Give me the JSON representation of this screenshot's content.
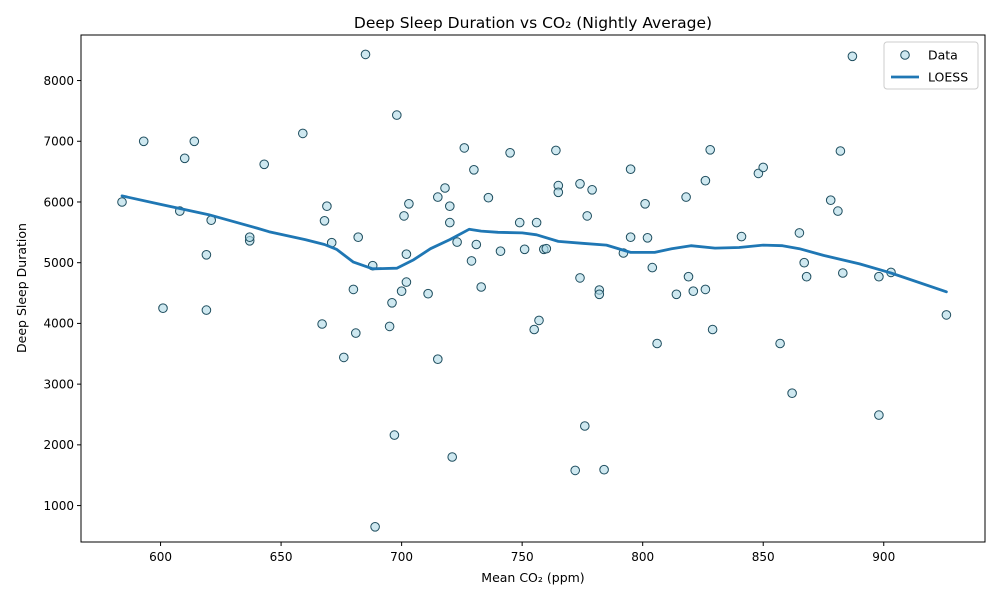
{
  "chart_data": {
    "type": "scatter",
    "title": "Deep Sleep Duration vs CO₂ (Nightly Average)",
    "xlabel": "Mean CO₂ (ppm)",
    "ylabel": "Deep Sleep Duration",
    "xlim": [
      567,
      942
    ],
    "ylim": [
      400,
      8750
    ],
    "xticks": [
      600,
      650,
      700,
      750,
      800,
      850,
      900
    ],
    "yticks": [
      1000,
      2000,
      3000,
      4000,
      5000,
      6000,
      7000,
      8000
    ],
    "grid": false,
    "legend_position": "top-right",
    "legend": [
      {
        "label": "Data",
        "marker": "circle"
      },
      {
        "label": "LOESS",
        "marker": "line"
      }
    ],
    "colors": {
      "point_fill": "#add8e6",
      "point_edge": "#1f4e5f",
      "loess": "#1f77b4"
    },
    "series": [
      {
        "name": "Data",
        "kind": "scatter",
        "points": [
          [
            584,
            6000
          ],
          [
            593,
            7000
          ],
          [
            601,
            4250
          ],
          [
            608,
            5850
          ],
          [
            610,
            6720
          ],
          [
            614,
            7000
          ],
          [
            619,
            5130
          ],
          [
            619,
            4220
          ],
          [
            621,
            5700
          ],
          [
            637,
            5360
          ],
          [
            637,
            5420
          ],
          [
            643,
            6620
          ],
          [
            659,
            7130
          ],
          [
            667,
            3990
          ],
          [
            668,
            5690
          ],
          [
            669,
            5930
          ],
          [
            671,
            5330
          ],
          [
            676,
            3440
          ],
          [
            680,
            4560
          ],
          [
            681,
            3840
          ],
          [
            682,
            5420
          ],
          [
            685,
            8430
          ],
          [
            688,
            4950
          ],
          [
            689,
            650
          ],
          [
            695,
            3950
          ],
          [
            696,
            4340
          ],
          [
            697,
            2160
          ],
          [
            698,
            7430
          ],
          [
            700,
            4530
          ],
          [
            701,
            5770
          ],
          [
            702,
            5140
          ],
          [
            702,
            4680
          ],
          [
            703,
            5970
          ],
          [
            711,
            4490
          ],
          [
            715,
            3410
          ],
          [
            715,
            6080
          ],
          [
            718,
            6230
          ],
          [
            720,
            5660
          ],
          [
            720,
            5930
          ],
          [
            721,
            1800
          ],
          [
            723,
            5340
          ],
          [
            726,
            6890
          ],
          [
            729,
            5030
          ],
          [
            730,
            6530
          ],
          [
            731,
            5300
          ],
          [
            733,
            4600
          ],
          [
            736,
            6070
          ],
          [
            741,
            5190
          ],
          [
            745,
            6810
          ],
          [
            749,
            5660
          ],
          [
            751,
            5220
          ],
          [
            755,
            3900
          ],
          [
            756,
            5660
          ],
          [
            757,
            4050
          ],
          [
            759,
            5220
          ],
          [
            760,
            5230
          ],
          [
            764,
            6850
          ],
          [
            765,
            6270
          ],
          [
            765,
            6160
          ],
          [
            772,
            1580
          ],
          [
            774,
            6300
          ],
          [
            774,
            4750
          ],
          [
            776,
            2310
          ],
          [
            777,
            5770
          ],
          [
            779,
            6200
          ],
          [
            782,
            4550
          ],
          [
            782,
            4480
          ],
          [
            784,
            1590
          ],
          [
            792,
            5160
          ],
          [
            795,
            6540
          ],
          [
            795,
            5420
          ],
          [
            801,
            5970
          ],
          [
            802,
            5410
          ],
          [
            804,
            4920
          ],
          [
            806,
            3670
          ],
          [
            814,
            4480
          ],
          [
            818,
            6080
          ],
          [
            819,
            4770
          ],
          [
            821,
            4530
          ],
          [
            826,
            4560
          ],
          [
            826,
            6350
          ],
          [
            828,
            6860
          ],
          [
            829,
            3900
          ],
          [
            841,
            5430
          ],
          [
            848,
            6470
          ],
          [
            850,
            6570
          ],
          [
            857,
            3670
          ],
          [
            862,
            2850
          ],
          [
            865,
            5490
          ],
          [
            867,
            5000
          ],
          [
            868,
            4770
          ],
          [
            878,
            6030
          ],
          [
            881,
            5850
          ],
          [
            882,
            6840
          ],
          [
            883,
            4830
          ],
          [
            887,
            8400
          ],
          [
            898,
            4770
          ],
          [
            898,
            2490
          ],
          [
            903,
            4840
          ],
          [
            926,
            4140
          ]
        ]
      },
      {
        "name": "LOESS",
        "kind": "line",
        "points": [
          [
            584,
            6100
          ],
          [
            600,
            5960
          ],
          [
            620,
            5790
          ],
          [
            640,
            5570
          ],
          [
            645,
            5510
          ],
          [
            660,
            5380
          ],
          [
            668,
            5300
          ],
          [
            673,
            5220
          ],
          [
            680,
            5010
          ],
          [
            688,
            4900
          ],
          [
            698,
            4910
          ],
          [
            705,
            5050
          ],
          [
            712,
            5230
          ],
          [
            720,
            5380
          ],
          [
            728,
            5550
          ],
          [
            733,
            5520
          ],
          [
            740,
            5500
          ],
          [
            750,
            5490
          ],
          [
            756,
            5460
          ],
          [
            765,
            5350
          ],
          [
            775,
            5320
          ],
          [
            785,
            5290
          ],
          [
            795,
            5170
          ],
          [
            805,
            5170
          ],
          [
            812,
            5230
          ],
          [
            820,
            5280
          ],
          [
            830,
            5240
          ],
          [
            840,
            5250
          ],
          [
            850,
            5290
          ],
          [
            858,
            5280
          ],
          [
            865,
            5230
          ],
          [
            875,
            5120
          ],
          [
            890,
            4980
          ],
          [
            903,
            4830
          ],
          [
            926,
            4520
          ]
        ]
      }
    ]
  }
}
